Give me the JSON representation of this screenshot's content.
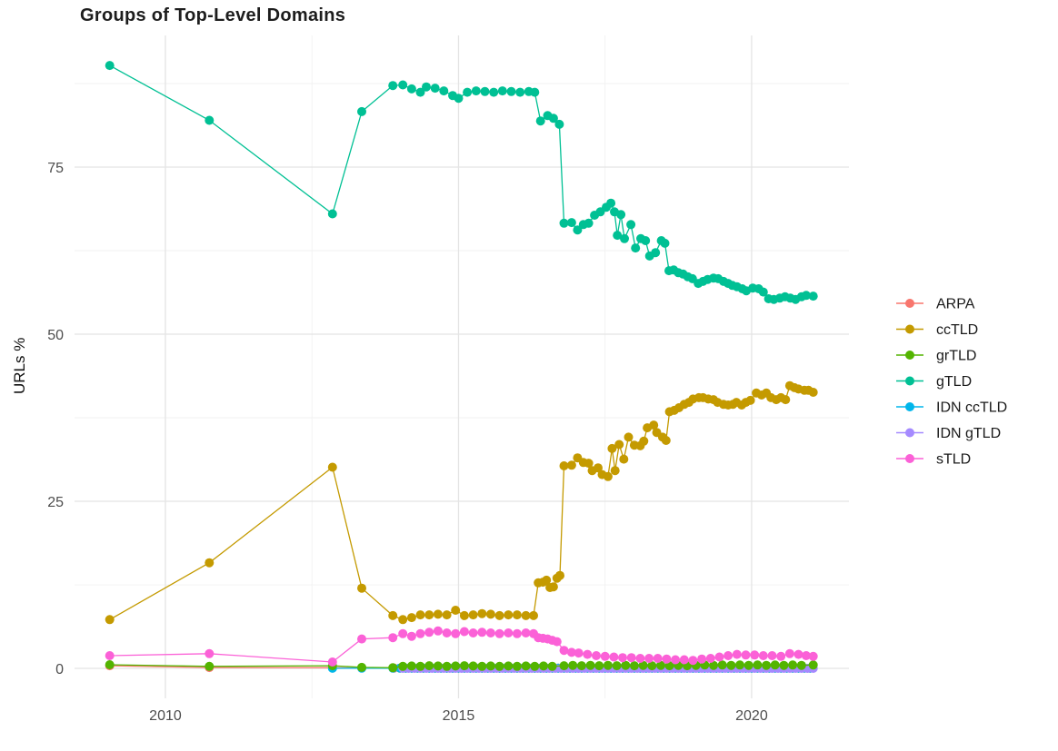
{
  "chart_data": {
    "type": "line",
    "title": "Groups of Top-Level Domains",
    "xlabel": "",
    "ylabel": "URLs %",
    "xlim": [
      2008.45,
      2021.66
    ],
    "ylim": [
      -4.48,
      94.7
    ],
    "x_ticks": [
      {
        "value": 2010,
        "label": "2010"
      },
      {
        "value": 2015,
        "label": "2015"
      },
      {
        "value": 2020,
        "label": "2020"
      }
    ],
    "y_ticks": [
      {
        "value": 0,
        "label": "0"
      },
      {
        "value": 25,
        "label": "25"
      },
      {
        "value": 50,
        "label": "50"
      },
      {
        "value": 75,
        "label": "75"
      }
    ],
    "x_minor": [
      2012.5,
      2017.5
    ],
    "y_minor": [
      12.5,
      37.5,
      62.5,
      87.5
    ],
    "grid": "on",
    "legend_position": "right",
    "draw_order": [
      "ARPA",
      "IDN ccTLD",
      "IDN gTLD",
      "grTLD",
      "sTLD",
      "ccTLD",
      "gTLD"
    ],
    "style": {
      "background": "#ffffff",
      "grid_major": "#e4e4e4",
      "grid_minor": "#f1f1f1",
      "tick_label_color": "#4d4d4d",
      "legend_label_color": "#1a1a1a",
      "point_radius": 5,
      "line_width": 1.3
    },
    "series": [
      {
        "name": "ARPA",
        "color": "#F8766D",
        "points": [
          [
            2009.05,
            0.4
          ],
          [
            2010.75,
            0.12
          ],
          [
            2012.85,
            0.1
          ],
          [
            2013.35,
            0.06
          ]
        ],
        "flat_runs": [
          {
            "from": 2013.9,
            "to": 2021.05,
            "step": 0.1,
            "value": 0.05
          }
        ]
      },
      {
        "name": "ccTLD",
        "color": "#C49A00",
        "points": [
          [
            2009.05,
            7.3
          ],
          [
            2010.75,
            15.8
          ],
          [
            2012.85,
            30.1
          ],
          [
            2013.35,
            12.0
          ],
          [
            2013.88,
            7.9
          ],
          [
            2014.05,
            7.3
          ],
          [
            2014.2,
            7.6
          ],
          [
            2014.35,
            8.0
          ],
          [
            2014.5,
            8.0
          ],
          [
            2014.65,
            8.1
          ],
          [
            2014.8,
            8.0
          ],
          [
            2014.95,
            8.7
          ],
          [
            2015.1,
            7.9
          ],
          [
            2015.25,
            8.0
          ],
          [
            2015.4,
            8.2
          ],
          [
            2015.55,
            8.1
          ],
          [
            2015.7,
            7.9
          ],
          [
            2015.85,
            8.0
          ],
          [
            2016.0,
            8.0
          ],
          [
            2016.15,
            7.9
          ],
          [
            2016.28,
            7.9
          ],
          [
            2016.36,
            12.8
          ],
          [
            2016.44,
            12.9
          ],
          [
            2016.5,
            13.2
          ],
          [
            2016.56,
            12.1
          ],
          [
            2016.62,
            12.2
          ],
          [
            2016.68,
            13.5
          ],
          [
            2016.73,
            13.9
          ],
          [
            2016.8,
            30.3
          ],
          [
            2016.93,
            30.4
          ],
          [
            2017.03,
            31.5
          ],
          [
            2017.13,
            30.8
          ],
          [
            2017.22,
            30.7
          ],
          [
            2017.28,
            29.6
          ],
          [
            2017.38,
            30.0
          ],
          [
            2017.45,
            29.0
          ],
          [
            2017.55,
            28.7
          ],
          [
            2017.62,
            32.9
          ],
          [
            2017.67,
            29.6
          ],
          [
            2017.74,
            33.5
          ],
          [
            2017.82,
            31.3
          ],
          [
            2017.9,
            34.6
          ],
          [
            2018.0,
            33.4
          ],
          [
            2018.1,
            33.3
          ],
          [
            2018.16,
            34.0
          ],
          [
            2018.22,
            36.0
          ],
          [
            2018.33,
            36.4
          ],
          [
            2018.38,
            35.3
          ],
          [
            2018.48,
            34.6
          ],
          [
            2018.54,
            34.1
          ],
          [
            2018.6,
            38.4
          ],
          [
            2018.68,
            38.6
          ],
          [
            2018.76,
            39.0
          ],
          [
            2018.85,
            39.5
          ],
          [
            2018.93,
            39.8
          ],
          [
            2019.0,
            40.3
          ],
          [
            2019.1,
            40.5
          ],
          [
            2019.17,
            40.5
          ],
          [
            2019.26,
            40.3
          ],
          [
            2019.35,
            40.2
          ],
          [
            2019.42,
            39.8
          ],
          [
            2019.52,
            39.5
          ],
          [
            2019.6,
            39.4
          ],
          [
            2019.68,
            39.5
          ],
          [
            2019.74,
            39.8
          ],
          [
            2019.83,
            39.4
          ],
          [
            2019.9,
            39.8
          ],
          [
            2019.98,
            40.1
          ],
          [
            2020.08,
            41.2
          ],
          [
            2020.17,
            40.9
          ],
          [
            2020.25,
            41.2
          ],
          [
            2020.33,
            40.5
          ],
          [
            2020.42,
            40.2
          ],
          [
            2020.5,
            40.5
          ],
          [
            2020.58,
            40.2
          ],
          [
            2020.65,
            42.3
          ],
          [
            2020.73,
            42.0
          ],
          [
            2020.8,
            41.8
          ],
          [
            2020.9,
            41.6
          ],
          [
            2020.97,
            41.6
          ],
          [
            2021.05,
            41.3
          ]
        ]
      },
      {
        "name": "grTLD",
        "color": "#53B400",
        "points": [
          [
            2009.05,
            0.55
          ],
          [
            2010.75,
            0.3
          ],
          [
            2012.85,
            0.4
          ],
          [
            2013.35,
            0.15
          ],
          [
            2013.88,
            0.1
          ],
          [
            2014.05,
            0.3
          ],
          [
            2014.2,
            0.35
          ],
          [
            2014.35,
            0.3
          ],
          [
            2014.5,
            0.4
          ],
          [
            2014.65,
            0.35
          ],
          [
            2014.8,
            0.3
          ],
          [
            2014.95,
            0.35
          ],
          [
            2015.1,
            0.4
          ],
          [
            2015.25,
            0.35
          ],
          [
            2015.4,
            0.3
          ],
          [
            2015.55,
            0.35
          ],
          [
            2015.7,
            0.3
          ],
          [
            2015.85,
            0.35
          ],
          [
            2016.0,
            0.3
          ],
          [
            2016.15,
            0.35
          ],
          [
            2016.3,
            0.3
          ],
          [
            2016.45,
            0.35
          ],
          [
            2016.6,
            0.3
          ],
          [
            2016.8,
            0.4
          ],
          [
            2016.95,
            0.45
          ],
          [
            2017.1,
            0.4
          ],
          [
            2017.25,
            0.45
          ],
          [
            2017.4,
            0.4
          ],
          [
            2017.55,
            0.45
          ],
          [
            2017.7,
            0.4
          ],
          [
            2017.85,
            0.45
          ],
          [
            2018.0,
            0.4
          ],
          [
            2018.15,
            0.45
          ],
          [
            2018.3,
            0.4
          ],
          [
            2018.45,
            0.45
          ],
          [
            2018.6,
            0.4
          ],
          [
            2018.75,
            0.45
          ],
          [
            2018.9,
            0.4
          ],
          [
            2019.05,
            0.45
          ],
          [
            2019.2,
            0.5
          ],
          [
            2019.35,
            0.45
          ],
          [
            2019.5,
            0.5
          ],
          [
            2019.65,
            0.45
          ],
          [
            2019.8,
            0.5
          ],
          [
            2019.95,
            0.45
          ],
          [
            2020.1,
            0.5
          ],
          [
            2020.25,
            0.45
          ],
          [
            2020.4,
            0.5
          ],
          [
            2020.55,
            0.45
          ],
          [
            2020.7,
            0.5
          ],
          [
            2020.85,
            0.45
          ],
          [
            2021.05,
            0.5
          ]
        ]
      },
      {
        "name": "gTLD",
        "color": "#00C094",
        "points": [
          [
            2009.05,
            90.2
          ],
          [
            2010.75,
            82.0
          ],
          [
            2012.85,
            68.0
          ],
          [
            2013.35,
            83.3
          ],
          [
            2013.88,
            87.2
          ],
          [
            2014.05,
            87.3
          ],
          [
            2014.2,
            86.7
          ],
          [
            2014.35,
            86.2
          ],
          [
            2014.45,
            87.0
          ],
          [
            2014.6,
            86.8
          ],
          [
            2014.75,
            86.4
          ],
          [
            2014.9,
            85.7
          ],
          [
            2015.0,
            85.3
          ],
          [
            2015.15,
            86.2
          ],
          [
            2015.3,
            86.4
          ],
          [
            2015.45,
            86.3
          ],
          [
            2015.6,
            86.2
          ],
          [
            2015.75,
            86.4
          ],
          [
            2015.9,
            86.3
          ],
          [
            2016.05,
            86.2
          ],
          [
            2016.2,
            86.3
          ],
          [
            2016.3,
            86.2
          ],
          [
            2016.4,
            81.9
          ],
          [
            2016.52,
            82.7
          ],
          [
            2016.62,
            82.3
          ],
          [
            2016.72,
            81.4
          ],
          [
            2016.8,
            66.6
          ],
          [
            2016.93,
            66.7
          ],
          [
            2017.03,
            65.6
          ],
          [
            2017.13,
            66.4
          ],
          [
            2017.22,
            66.6
          ],
          [
            2017.32,
            67.8
          ],
          [
            2017.42,
            68.3
          ],
          [
            2017.52,
            69.0
          ],
          [
            2017.6,
            69.6
          ],
          [
            2017.66,
            68.3
          ],
          [
            2017.71,
            64.8
          ],
          [
            2017.77,
            67.9
          ],
          [
            2017.83,
            64.3
          ],
          [
            2017.94,
            66.4
          ],
          [
            2018.02,
            62.9
          ],
          [
            2018.11,
            64.3
          ],
          [
            2018.19,
            64.0
          ],
          [
            2018.26,
            61.7
          ],
          [
            2018.36,
            62.2
          ],
          [
            2018.46,
            64.0
          ],
          [
            2018.52,
            63.6
          ],
          [
            2018.59,
            59.5
          ],
          [
            2018.67,
            59.6
          ],
          [
            2018.75,
            59.2
          ],
          [
            2018.83,
            59.0
          ],
          [
            2018.91,
            58.6
          ],
          [
            2018.99,
            58.3
          ],
          [
            2019.09,
            57.6
          ],
          [
            2019.17,
            57.9
          ],
          [
            2019.25,
            58.2
          ],
          [
            2019.35,
            58.4
          ],
          [
            2019.43,
            58.3
          ],
          [
            2019.52,
            57.9
          ],
          [
            2019.6,
            57.6
          ],
          [
            2019.67,
            57.3
          ],
          [
            2019.75,
            57.1
          ],
          [
            2019.84,
            56.8
          ],
          [
            2019.91,
            56.5
          ],
          [
            2020.02,
            56.9
          ],
          [
            2020.12,
            56.8
          ],
          [
            2020.2,
            56.3
          ],
          [
            2020.29,
            55.3
          ],
          [
            2020.38,
            55.2
          ],
          [
            2020.48,
            55.4
          ],
          [
            2020.57,
            55.6
          ],
          [
            2020.66,
            55.4
          ],
          [
            2020.75,
            55.2
          ],
          [
            2020.85,
            55.6
          ],
          [
            2020.93,
            55.8
          ],
          [
            2021.05,
            55.7
          ]
        ]
      },
      {
        "name": "IDN ccTLD",
        "color": "#00B6EB",
        "points": [
          [
            2012.85,
            0.02
          ],
          [
            2013.35,
            0.03
          ],
          [
            2013.88,
            0.03
          ]
        ],
        "flat_runs": [
          {
            "from": 2014.0,
            "to": 2021.05,
            "step": 0.1,
            "value": 0.05
          }
        ]
      },
      {
        "name": "IDN gTLD",
        "color": "#A58AFF",
        "points": [],
        "flat_runs": [
          {
            "from": 2014.05,
            "to": 2021.05,
            "step": 0.1,
            "value": 0.0
          }
        ]
      },
      {
        "name": "sTLD",
        "color": "#FB61D7",
        "points": [
          [
            2009.05,
            1.9
          ],
          [
            2010.75,
            2.2
          ],
          [
            2012.85,
            0.95
          ],
          [
            2013.35,
            4.4
          ],
          [
            2013.88,
            4.6
          ],
          [
            2014.05,
            5.2
          ],
          [
            2014.2,
            4.8
          ],
          [
            2014.35,
            5.2
          ],
          [
            2014.5,
            5.4
          ],
          [
            2014.65,
            5.6
          ],
          [
            2014.8,
            5.3
          ],
          [
            2014.95,
            5.2
          ],
          [
            2015.1,
            5.5
          ],
          [
            2015.25,
            5.3
          ],
          [
            2015.4,
            5.4
          ],
          [
            2015.55,
            5.3
          ],
          [
            2015.7,
            5.2
          ],
          [
            2015.85,
            5.3
          ],
          [
            2016.0,
            5.2
          ],
          [
            2016.15,
            5.3
          ],
          [
            2016.28,
            5.2
          ],
          [
            2016.36,
            4.6
          ],
          [
            2016.44,
            4.5
          ],
          [
            2016.52,
            4.4
          ],
          [
            2016.6,
            4.2
          ],
          [
            2016.68,
            4.0
          ],
          [
            2016.8,
            2.7
          ],
          [
            2016.93,
            2.4
          ],
          [
            2017.05,
            2.3
          ],
          [
            2017.2,
            2.1
          ],
          [
            2017.35,
            1.9
          ],
          [
            2017.5,
            1.8
          ],
          [
            2017.65,
            1.7
          ],
          [
            2017.8,
            1.6
          ],
          [
            2017.95,
            1.6
          ],
          [
            2018.1,
            1.5
          ],
          [
            2018.25,
            1.5
          ],
          [
            2018.4,
            1.5
          ],
          [
            2018.55,
            1.4
          ],
          [
            2018.7,
            1.3
          ],
          [
            2018.85,
            1.3
          ],
          [
            2019.0,
            1.2
          ],
          [
            2019.15,
            1.4
          ],
          [
            2019.3,
            1.5
          ],
          [
            2019.45,
            1.7
          ],
          [
            2019.6,
            1.9
          ],
          [
            2019.75,
            2.1
          ],
          [
            2019.9,
            2.0
          ],
          [
            2020.05,
            2.0
          ],
          [
            2020.2,
            1.9
          ],
          [
            2020.35,
            1.9
          ],
          [
            2020.5,
            1.8
          ],
          [
            2020.65,
            2.2
          ],
          [
            2020.8,
            2.1
          ],
          [
            2020.93,
            1.9
          ],
          [
            2021.05,
            1.8
          ]
        ]
      }
    ]
  }
}
